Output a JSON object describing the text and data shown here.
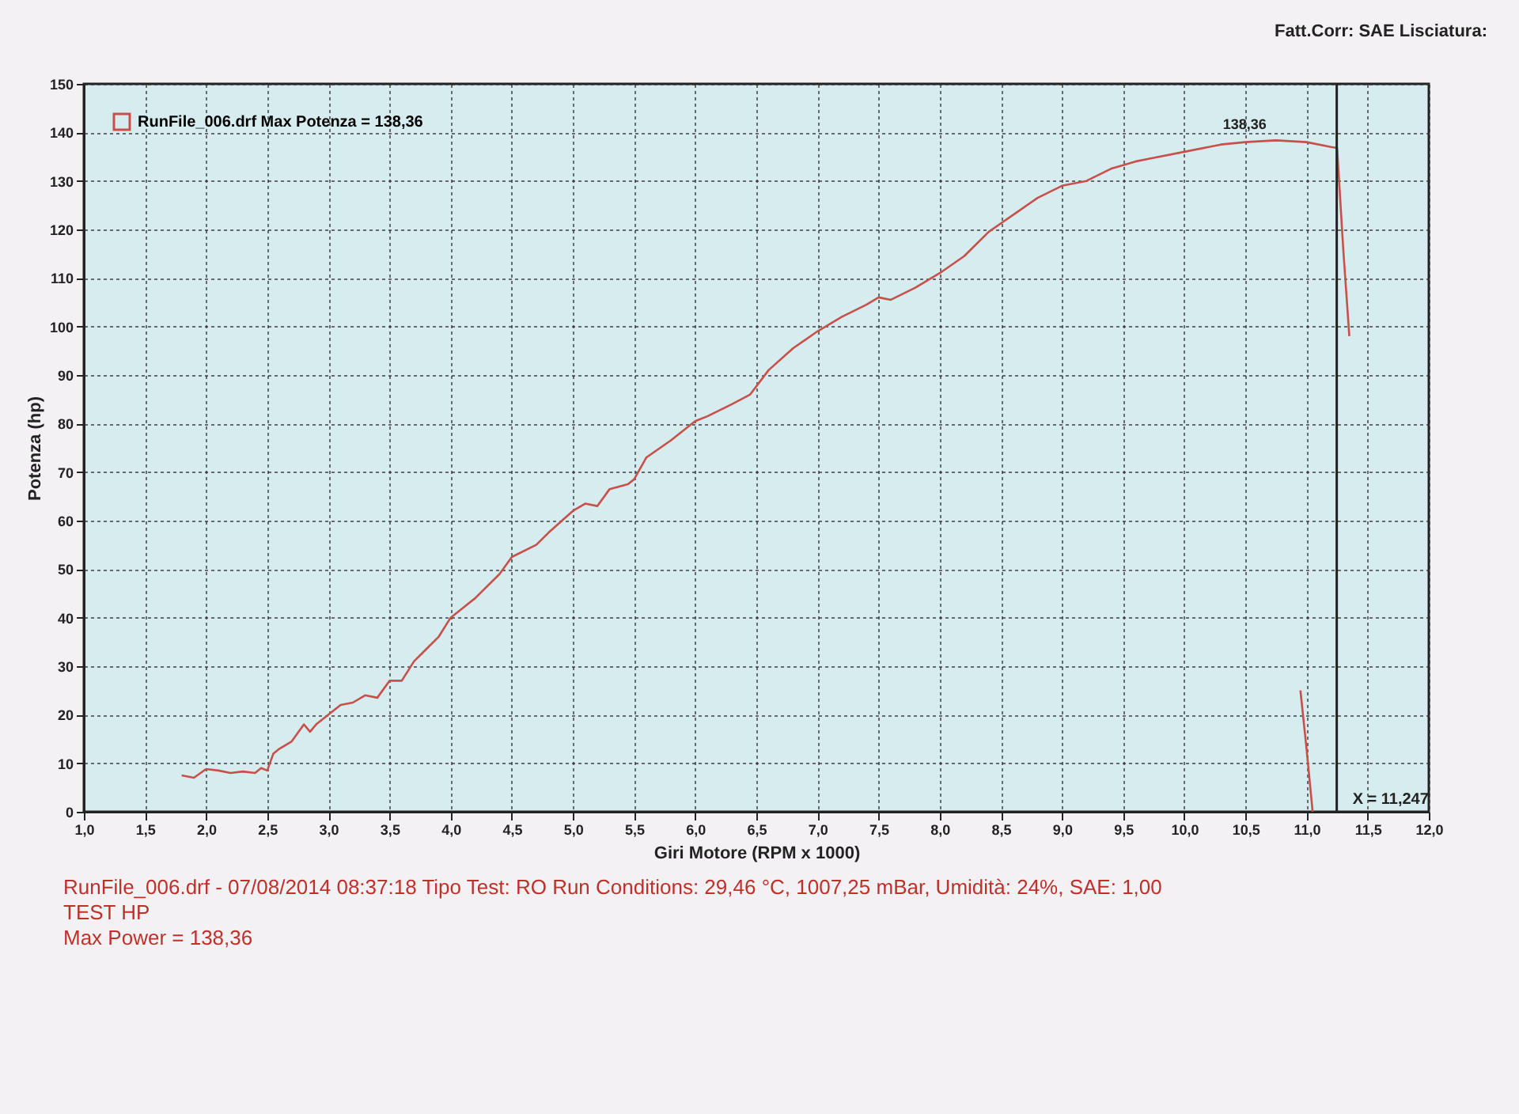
{
  "chart_data": {
    "type": "line",
    "xlabel": "Giri Motore (RPM x 1000)",
    "ylabel": "Potenza (hp)",
    "xlim": [
      1,
      12
    ],
    "ylim": [
      0,
      150
    ],
    "xticks": [
      {
        "value": 1,
        "label": "1,0"
      },
      {
        "value": 1.5,
        "label": "1,5"
      },
      {
        "value": 2,
        "label": "2,0"
      },
      {
        "value": 2.5,
        "label": "2,5"
      },
      {
        "value": 3,
        "label": "3,0"
      },
      {
        "value": 3.5,
        "label": "3,5"
      },
      {
        "value": 4,
        "label": "4,0"
      },
      {
        "value": 4.5,
        "label": "4,5"
      },
      {
        "value": 5,
        "label": "5,0"
      },
      {
        "value": 5.5,
        "label": "5,5"
      },
      {
        "value": 6,
        "label": "6,0"
      },
      {
        "value": 6.5,
        "label": "6,5"
      },
      {
        "value": 7,
        "label": "7,0"
      },
      {
        "value": 7.5,
        "label": "7,5"
      },
      {
        "value": 8,
        "label": "8,0"
      },
      {
        "value": 8.5,
        "label": "8,5"
      },
      {
        "value": 9,
        "label": "9,0"
      },
      {
        "value": 9.5,
        "label": "9,5"
      },
      {
        "value": 10,
        "label": "10,0"
      },
      {
        "value": 10.5,
        "label": "10,5"
      },
      {
        "value": 11,
        "label": "11,0"
      },
      {
        "value": 11.5,
        "label": "11,5"
      },
      {
        "value": 12,
        "label": "12,0"
      }
    ],
    "yticks": [
      0,
      10,
      20,
      30,
      40,
      50,
      60,
      70,
      80,
      90,
      100,
      110,
      120,
      130,
      140,
      150
    ],
    "grid": true,
    "legend": "top left",
    "series": [
      {
        "name": "RunFile_006.drf Max Potenza = 138,36",
        "color": "#c8504a",
        "x": [
          1.8,
          1.9,
          2.0,
          2.1,
          2.2,
          2.3,
          2.4,
          2.45,
          2.5,
          2.55,
          2.6,
          2.7,
          2.8,
          2.85,
          2.9,
          3.0,
          3.1,
          3.2,
          3.3,
          3.4,
          3.5,
          3.6,
          3.7,
          3.8,
          3.9,
          4.0,
          4.2,
          4.4,
          4.5,
          4.7,
          4.8,
          5.0,
          5.1,
          5.2,
          5.3,
          5.45,
          5.5,
          5.6,
          5.8,
          6.0,
          6.1,
          6.3,
          6.45,
          6.6,
          6.8,
          7.0,
          7.2,
          7.4,
          7.5,
          7.6,
          7.8,
          8.0,
          8.2,
          8.4,
          8.6,
          8.8,
          9.0,
          9.2,
          9.4,
          9.6,
          9.7,
          10.0,
          10.3,
          10.5,
          10.75,
          11.0,
          11.2,
          11.25,
          11.3,
          11.35,
          11.1,
          10.95,
          11.0,
          11.05
        ],
        "values": [
          7.5,
          7,
          8.8,
          8.5,
          8,
          8.3,
          8,
          9,
          8.5,
          12,
          13,
          14.5,
          18,
          16.5,
          18,
          20,
          22,
          22.5,
          24,
          23.5,
          27,
          27,
          31,
          33.5,
          36,
          40,
          44,
          49,
          52.5,
          55,
          57.5,
          62,
          63.5,
          63,
          66.5,
          67.5,
          68.5,
          73,
          76.5,
          80.5,
          81.5,
          84,
          86,
          91,
          95.5,
          99,
          102,
          104.5,
          106,
          105.5,
          108,
          111,
          114.5,
          119.5,
          123,
          126.5,
          129,
          130,
          132.5,
          134,
          134.5,
          136,
          137.5,
          138,
          138.36,
          138,
          137,
          136.8,
          116,
          98,
          null,
          25,
          13,
          0
        ]
      }
    ],
    "ref_lines": [
      {
        "axis": "x",
        "value": 11.247,
        "label": "X = 11,247",
        "color": "#222222"
      }
    ],
    "annotations": [
      {
        "text": "138,36",
        "x": 10.75,
        "y": 138.36
      },
      "Fatt.Corr: SAE  Lisciatura:",
      "RunFile_006.drf - 07/08/2014 08:37:18  Tipo Test: RO  Run Conditions: 29,46 °C, 1007,25 mBar,  Umidità: 24%, SAE: 1,00",
      "TEST HP",
      "Max Power = 138,36"
    ]
  }
}
